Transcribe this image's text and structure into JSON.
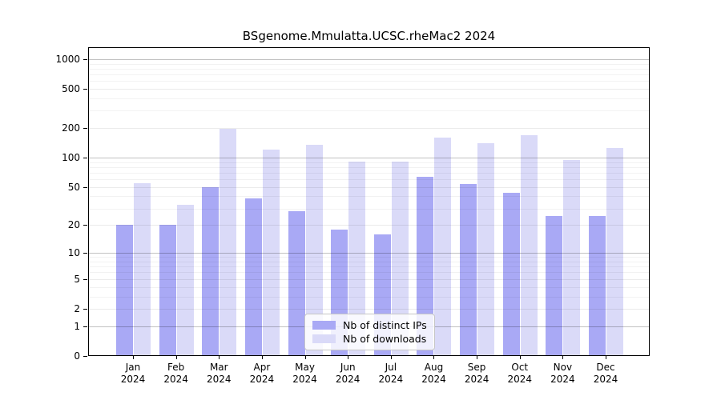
{
  "title": "BSgenome.Mmulatta.UCSC.rheMac2 2024",
  "chart_data": {
    "type": "bar",
    "title": "BSgenome.Mmulatta.UCSC.rheMac2 2024",
    "scale": "log1p",
    "grid": "horizontal",
    "legend_position": "bottom-center-inside",
    "categories": [
      "Jan",
      "Feb",
      "Mar",
      "Apr",
      "May",
      "Jun",
      "Jul",
      "Aug",
      "Sep",
      "Oct",
      "Nov",
      "Dec"
    ],
    "year": "2024",
    "series": [
      {
        "name": "Nb of distinct IPs",
        "color": "#a9a9f5",
        "values": [
          20,
          20,
          50,
          38,
          28,
          18,
          16,
          64,
          54,
          44,
          25,
          25
        ]
      },
      {
        "name": "Nb of downloads",
        "color": "#dadaf8",
        "values": [
          55,
          33,
          195,
          120,
          135,
          92,
          92,
          160,
          140,
          170,
          95,
          125
        ]
      }
    ],
    "y_ticks": [
      1000,
      500,
      200,
      100,
      50,
      20,
      10,
      5,
      2,
      1,
      0
    ],
    "ylim": [
      0,
      1300
    ],
    "xlabel": "",
    "ylabel": ""
  },
  "colors": {
    "bar_distinct_ips": "#a9a9f5",
    "bar_downloads": "#dadaf8",
    "grid_decade": "rgba(0,0,0,0.24)",
    "grid_tick": "rgba(0,0,0,0.08)",
    "grid_minor": "rgba(0,0,0,0.05)",
    "axis": "#000000",
    "background": "#ffffff"
  }
}
